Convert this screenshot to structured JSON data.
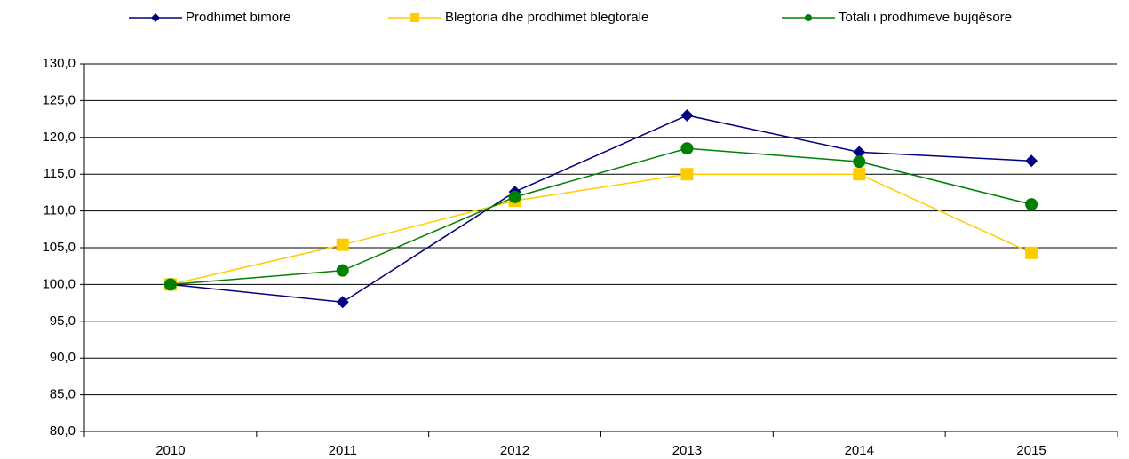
{
  "chart_data": {
    "type": "line",
    "categories": [
      "2010",
      "2011",
      "2012",
      "2013",
      "2014",
      "2015"
    ],
    "series": [
      {
        "name": "Prodhimet bimore",
        "color": "#000080",
        "marker": "diamond",
        "values": [
          100.0,
          97.6,
          112.6,
          123.0,
          118.0,
          116.8
        ]
      },
      {
        "name": "Blegtoria dhe prodhimet blegtorale",
        "color": "#ffcc00",
        "marker": "square",
        "values": [
          100.0,
          105.4,
          111.4,
          115.0,
          115.0,
          104.3
        ]
      },
      {
        "name": "Totali i prodhimeve bujqësore",
        "color": "#008000",
        "marker": "circle",
        "values": [
          100.0,
          101.9,
          111.9,
          118.5,
          116.7,
          110.9
        ]
      }
    ],
    "ylim": [
      80,
      130
    ],
    "yticks": [
      {
        "value": 80,
        "label": "80,0"
      },
      {
        "value": 85,
        "label": "85,0"
      },
      {
        "value": 90,
        "label": "90,0"
      },
      {
        "value": 95,
        "label": "95,0"
      },
      {
        "value": 100,
        "label": "100,0"
      },
      {
        "value": 105,
        "label": "105,0"
      },
      {
        "value": 110,
        "label": "110,0"
      },
      {
        "value": 115,
        "label": "115,0"
      },
      {
        "value": 120,
        "label": "120,0"
      },
      {
        "value": 125,
        "label": "125,0"
      },
      {
        "value": 130,
        "label": "130,0"
      }
    ],
    "grid": true,
    "legend": "top"
  }
}
